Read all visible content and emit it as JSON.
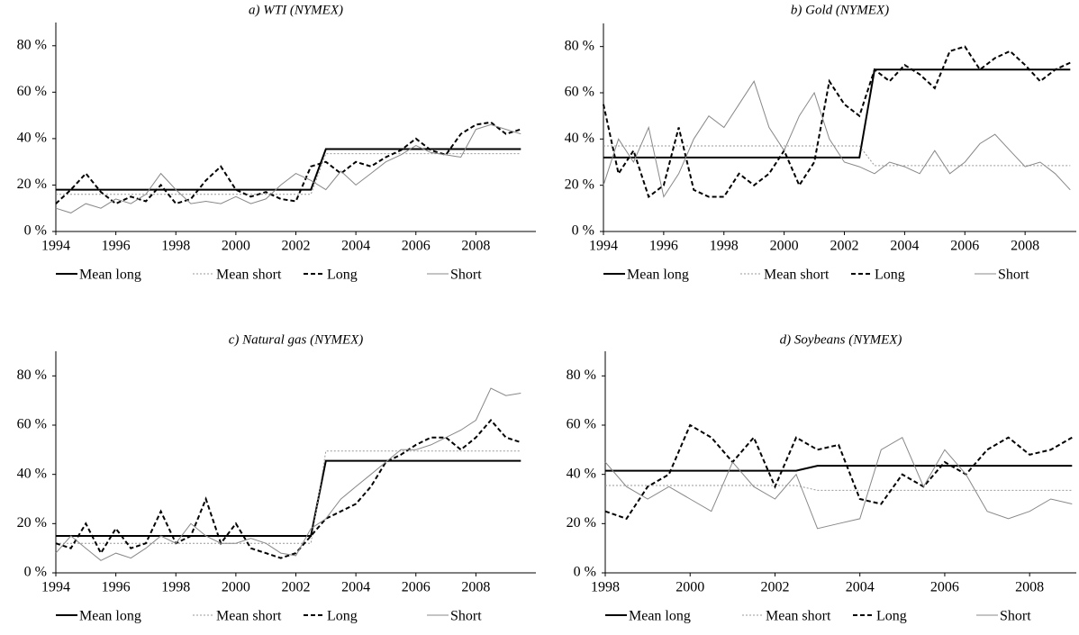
{
  "chart_data": [
    {
      "type": "line",
      "title": "a) WTI (NYMEX)",
      "x": [
        1994,
        1994.5,
        1995,
        1995.5,
        1996,
        1996.5,
        1997,
        1997.5,
        1998,
        1998.5,
        1999,
        1999.5,
        2000,
        2000.5,
        2001,
        2001.5,
        2002,
        2002.5,
        2003,
        2003.5,
        2004,
        2004.5,
        2005,
        2005.5,
        2006,
        2006.5,
        2007,
        2007.5,
        2008,
        2008.5,
        2009,
        2009.5
      ],
      "xlim": [
        1994,
        2010
      ],
      "xticks": [
        1994,
        1996,
        1998,
        2000,
        2002,
        2004,
        2006,
        2008
      ],
      "ylim": [
        0,
        90
      ],
      "yticks": [
        {
          "value": 0,
          "label": "0 %"
        },
        {
          "value": 20,
          "label": "20 %"
        },
        {
          "value": 40,
          "label": "40 %"
        },
        {
          "value": 60,
          "label": "60 %"
        },
        {
          "value": 80,
          "label": "80 %"
        }
      ],
      "series": [
        {
          "name": "Mean long",
          "color": "#000000",
          "style": "solid",
          "values": [
            18,
            18,
            18,
            18,
            18,
            18,
            18,
            18,
            18,
            18,
            18,
            18,
            18,
            18,
            18,
            18,
            18,
            18,
            35.5,
            35.5,
            35.5,
            35.5,
            35.5,
            35.5,
            35.5,
            35.5,
            35.5,
            35.5,
            35.5,
            35.5,
            35.5,
            35.5
          ]
        },
        {
          "name": "Mean short",
          "color": "#999999",
          "style": "dotted",
          "values": [
            16,
            16,
            16,
            16,
            16,
            16,
            16,
            16,
            16,
            16,
            16,
            16,
            16,
            16,
            16,
            16,
            16,
            16,
            33.5,
            33.5,
            33.5,
            33.5,
            33.5,
            33.5,
            33.5,
            33.5,
            33.5,
            33.5,
            33.5,
            33.5,
            33.5,
            33.5
          ]
        },
        {
          "name": "Long",
          "color": "#000000",
          "style": "dashed",
          "values": [
            12,
            18,
            25,
            17,
            12,
            15,
            13,
            20,
            12,
            14,
            22,
            28,
            18,
            15,
            17,
            14,
            13,
            28,
            30,
            25,
            30,
            28,
            32,
            35,
            40,
            35,
            33,
            42,
            46,
            47,
            42,
            44
          ]
        },
        {
          "name": "Short",
          "color": "#888888",
          "style": "thin",
          "values": [
            10,
            8,
            12,
            10,
            14,
            12,
            16,
            25,
            18,
            12,
            13,
            12,
            15,
            12,
            14,
            20,
            25,
            22,
            18,
            26,
            20,
            25,
            30,
            33,
            37,
            34,
            33,
            32,
            44,
            46,
            44,
            42
          ]
        }
      ]
    },
    {
      "type": "line",
      "title": "b) Gold (NYMEX)",
      "x": [
        1994,
        1994.5,
        1995,
        1995.5,
        1996,
        1996.5,
        1997,
        1997.5,
        1998,
        1998.5,
        1999,
        1999.5,
        2000,
        2000.5,
        2001,
        2001.5,
        2002,
        2002.5,
        2003,
        2003.5,
        2004,
        2004.5,
        2005,
        2005.5,
        2006,
        2006.5,
        2007,
        2007.5,
        2008,
        2008.5,
        2009,
        2009.5
      ],
      "xlim": [
        1994,
        2009.7
      ],
      "xticks": [
        1994,
        1996,
        1998,
        2000,
        2002,
        2004,
        2006,
        2008
      ],
      "ylim": [
        0,
        90
      ],
      "yticks": [
        {
          "value": 0,
          "label": "0 %"
        },
        {
          "value": 20,
          "label": "20 %"
        },
        {
          "value": 40,
          "label": "40 %"
        },
        {
          "value": 60,
          "label": "60 %"
        },
        {
          "value": 80,
          "label": "80 %"
        }
      ],
      "series": [
        {
          "name": "Mean long",
          "color": "#000000",
          "style": "solid",
          "values": [
            32,
            32,
            32,
            32,
            32,
            32,
            32,
            32,
            32,
            32,
            32,
            32,
            32,
            32,
            32,
            32,
            32,
            32,
            70,
            70,
            70,
            70,
            70,
            70,
            70,
            70,
            70,
            70,
            70,
            70,
            70,
            70
          ]
        },
        {
          "name": "Mean short",
          "color": "#999999",
          "style": "dotted",
          "values": [
            37,
            37,
            37,
            37,
            37,
            37,
            37,
            37,
            37,
            37,
            37,
            37,
            37,
            37,
            37,
            37,
            37,
            37,
            28.5,
            28.5,
            28.5,
            28.5,
            28.5,
            28.5,
            28.5,
            28.5,
            28.5,
            28.5,
            28.5,
            28.5,
            28.5,
            28.5
          ]
        },
        {
          "name": "Long",
          "color": "#000000",
          "style": "dashed",
          "values": [
            55,
            25,
            35,
            15,
            20,
            45,
            18,
            15,
            15,
            25,
            20,
            25,
            35,
            20,
            30,
            65,
            55,
            50,
            70,
            65,
            72,
            68,
            62,
            78,
            80,
            70,
            75,
            78,
            72,
            65,
            70,
            73
          ]
        },
        {
          "name": "Short",
          "color": "#888888",
          "style": "thin",
          "values": [
            20,
            40,
            30,
            45,
            15,
            25,
            40,
            50,
            45,
            55,
            65,
            45,
            35,
            50,
            60,
            40,
            30,
            28,
            25,
            30,
            28,
            25,
            35,
            25,
            30,
            38,
            42,
            35,
            28,
            30,
            25,
            18
          ]
        }
      ]
    },
    {
      "type": "line",
      "title": "c) Natural gas (NYMEX)",
      "x": [
        1994,
        1994.5,
        1995,
        1995.5,
        1996,
        1996.5,
        1997,
        1997.5,
        1998,
        1998.5,
        1999,
        1999.5,
        2000,
        2000.5,
        2001,
        2001.5,
        2002,
        2002.5,
        2003,
        2003.5,
        2004,
        2004.5,
        2005,
        2005.5,
        2006,
        2006.5,
        2007,
        2007.5,
        2008,
        2008.5,
        2009,
        2009.5
      ],
      "xlim": [
        1994,
        2010
      ],
      "xticks": [
        1994,
        1996,
        1998,
        2000,
        2002,
        2004,
        2006,
        2008
      ],
      "ylim": [
        0,
        90
      ],
      "yticks": [
        {
          "value": 0,
          "label": "0 %"
        },
        {
          "value": 20,
          "label": "20 %"
        },
        {
          "value": 40,
          "label": "40 %"
        },
        {
          "value": 60,
          "label": "60 %"
        },
        {
          "value": 80,
          "label": "80 %"
        }
      ],
      "series": [
        {
          "name": "Mean long",
          "color": "#000000",
          "style": "solid",
          "values": [
            15,
            15,
            15,
            15,
            15,
            15,
            15,
            15,
            15,
            15,
            15,
            15,
            15,
            15,
            15,
            15,
            15,
            15,
            45.5,
            45.5,
            45.5,
            45.5,
            45.5,
            45.5,
            45.5,
            45.5,
            45.5,
            45.5,
            45.5,
            45.5,
            45.5,
            45.5
          ]
        },
        {
          "name": "Mean short",
          "color": "#999999",
          "style": "dotted",
          "values": [
            12,
            12,
            12,
            12,
            12,
            12,
            12,
            12,
            12,
            12,
            12,
            12,
            12,
            12,
            12,
            12,
            12,
            12,
            49.5,
            49.5,
            49.5,
            49.5,
            49.5,
            49.5,
            49.5,
            49.5,
            49.5,
            49.5,
            49.5,
            49.5,
            49.5,
            49.5
          ]
        },
        {
          "name": "Long",
          "color": "#000000",
          "style": "dashed",
          "values": [
            12,
            10,
            20,
            8,
            18,
            10,
            12,
            25,
            12,
            15,
            30,
            12,
            20,
            10,
            8,
            6,
            8,
            15,
            22,
            25,
            28,
            35,
            45,
            48,
            52,
            55,
            55,
            50,
            55,
            62,
            55,
            53
          ]
        },
        {
          "name": "Short",
          "color": "#888888",
          "style": "thin",
          "values": [
            8,
            15,
            10,
            5,
            8,
            6,
            10,
            15,
            12,
            20,
            15,
            12,
            12,
            14,
            12,
            8,
            7,
            18,
            22,
            30,
            35,
            40,
            45,
            50,
            50,
            52,
            55,
            58,
            62,
            75,
            72,
            73
          ]
        }
      ]
    },
    {
      "type": "line",
      "title": "d) Soybeans (NYMEX)",
      "x": [
        1998,
        1998.5,
        1999,
        1999.5,
        2000,
        2000.5,
        2001,
        2001.5,
        2002,
        2002.5,
        2003,
        2003.5,
        2004,
        2004.5,
        2005,
        2005.5,
        2006,
        2006.5,
        2007,
        2007.5,
        2008,
        2008.5,
        2009
      ],
      "xlim": [
        1998,
        2009.1
      ],
      "xticks": [
        1998,
        2000,
        2002,
        2004,
        2006,
        2008
      ],
      "ylim": [
        0,
        90
      ],
      "yticks": [
        {
          "value": 0,
          "label": "0 %"
        },
        {
          "value": 20,
          "label": "20 %"
        },
        {
          "value": 40,
          "label": "40 %"
        },
        {
          "value": 60,
          "label": "60 %"
        },
        {
          "value": 80,
          "label": "80 %"
        }
      ],
      "series": [
        {
          "name": "Mean long",
          "color": "#000000",
          "style": "solid",
          "values": [
            41.5,
            41.5,
            41.5,
            41.5,
            41.5,
            41.5,
            41.5,
            41.5,
            41.5,
            41.5,
            43.5,
            43.5,
            43.5,
            43.5,
            43.5,
            43.5,
            43.5,
            43.5,
            43.5,
            43.5,
            43.5,
            43.5,
            43.5
          ]
        },
        {
          "name": "Mean short",
          "color": "#999999",
          "style": "dotted",
          "values": [
            35.5,
            35.5,
            35.5,
            35.5,
            35.5,
            35.5,
            35.5,
            35.5,
            35.5,
            35.5,
            33.5,
            33.5,
            33.5,
            33.5,
            33.5,
            33.5,
            33.5,
            33.5,
            33.5,
            33.5,
            33.5,
            33.5,
            33.5
          ]
        },
        {
          "name": "Long",
          "color": "#000000",
          "style": "dashed",
          "values": [
            25,
            22,
            35,
            40,
            60,
            55,
            45,
            55,
            35,
            55,
            50,
            52,
            30,
            28,
            40,
            35,
            45,
            40,
            50,
            55,
            48,
            50,
            55
          ]
        },
        {
          "name": "Short",
          "color": "#888888",
          "style": "thin",
          "values": [
            45,
            35,
            30,
            35,
            30,
            25,
            45,
            35,
            30,
            40,
            18,
            20,
            22,
            50,
            55,
            35,
            50,
            40,
            25,
            22,
            25,
            30,
            28
          ]
        }
      ]
    }
  ]
}
